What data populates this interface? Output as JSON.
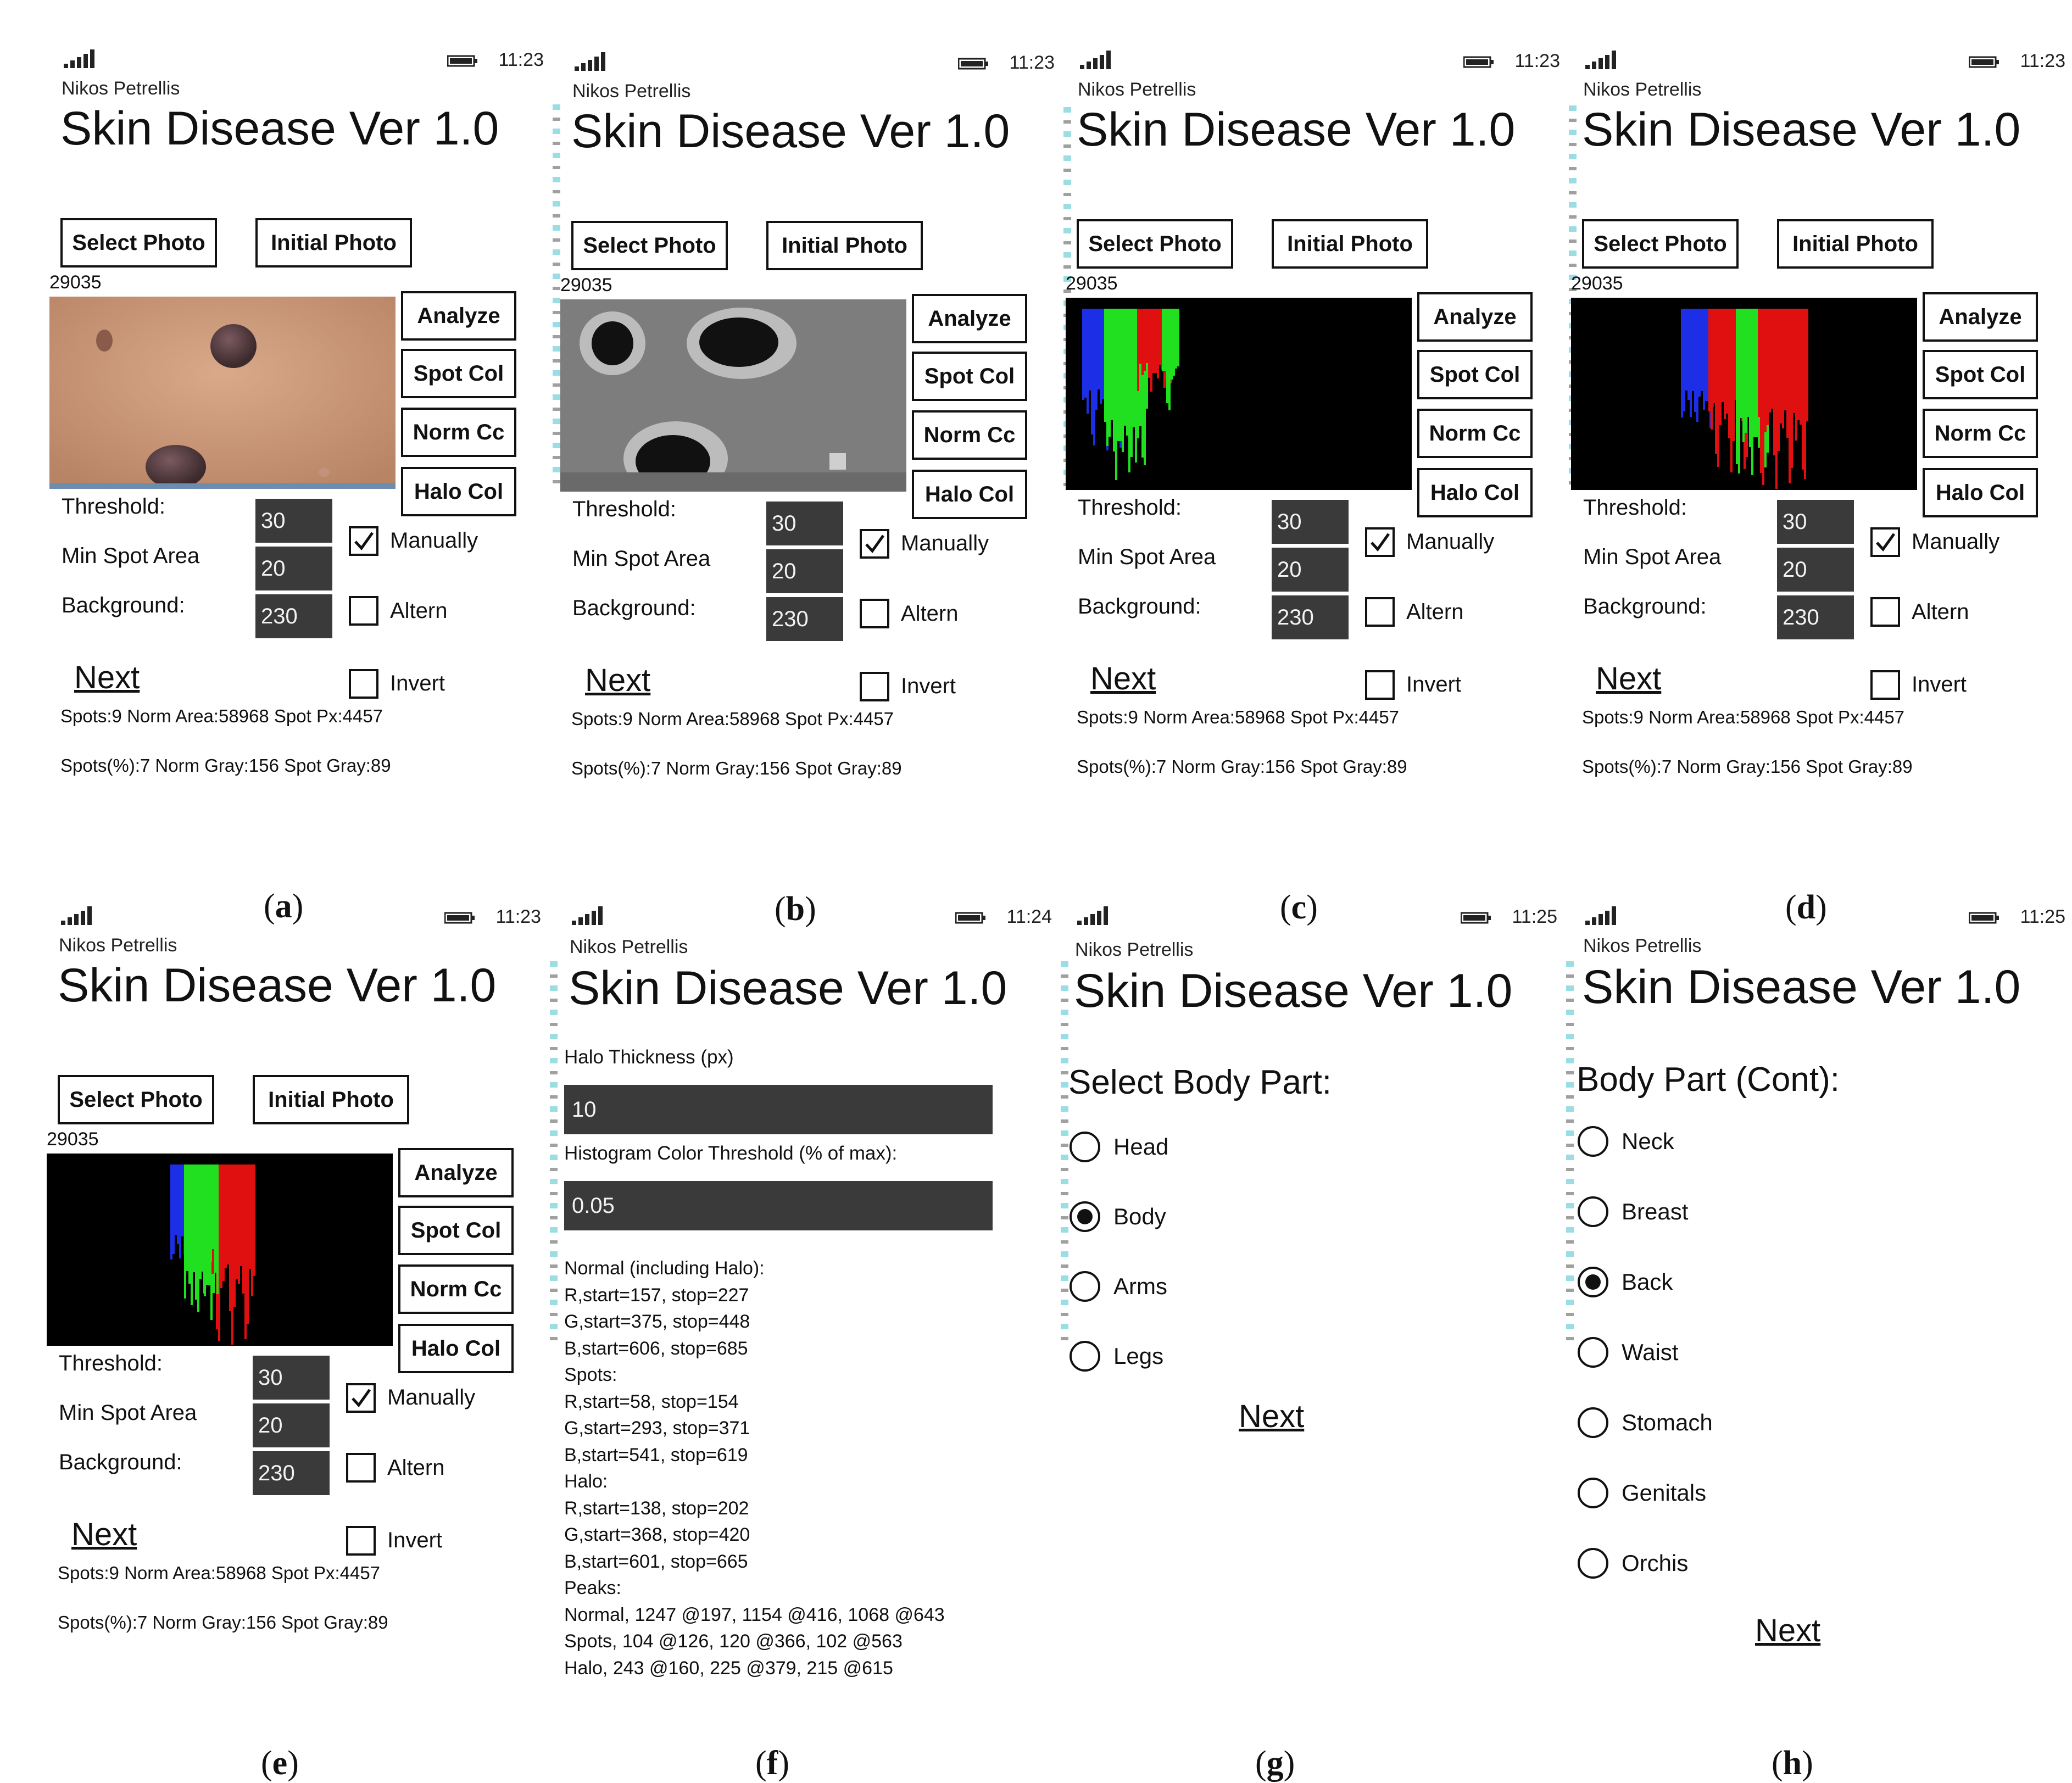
{
  "app": {
    "author": "Nikos Petrellis",
    "title": "Skin Disease Ver 1.0"
  },
  "analysis_panels": [
    {
      "caption": "a",
      "time": "11:23",
      "view": "photo"
    },
    {
      "caption": "b",
      "time": "11:23",
      "view": "segmented"
    },
    {
      "caption": "c",
      "time": "11:23",
      "view": "histogram_c"
    },
    {
      "caption": "d",
      "time": "11:23",
      "view": "histogram_d"
    },
    {
      "caption": "e",
      "time": "11:23",
      "view": "histogram_e"
    }
  ],
  "analysis": {
    "select_photo": "Select Photo",
    "initial_photo": "Initial Photo",
    "count": "29035",
    "analyze": "Analyze",
    "spot_col": "Spot Col",
    "norm_cc": "Norm Cc",
    "halo_col": "Halo Col",
    "threshold_label": "Threshold:",
    "threshold_value": "30",
    "min_spot_area_label": "Min Spot Area",
    "min_spot_area_value": "20",
    "background_label": "Background:",
    "background_value": "230",
    "manually_label": "Manually",
    "manually_checked": true,
    "altern_label": "Altern",
    "altern_checked": false,
    "invert_label": "Invert",
    "invert_checked": false,
    "next": "Next",
    "stats_line_1": "Spots:9 Norm Area:58968 Spot Px:4457",
    "stats_line_2": "Spots(%):7 Norm Gray:156 Spot Gray:89"
  },
  "panel_f": {
    "caption": "f",
    "time": "11:24",
    "halo_thickness_label": "Halo Thickness (px)",
    "halo_thickness_value": "10",
    "hist_threshold_label": "Histogram Color Threshold (% of max):",
    "hist_threshold_value": "0.05",
    "lines": [
      "Normal (including Halo):",
      "R,start=157, stop=227",
      "G,start=375, stop=448",
      "B,start=606, stop=685",
      "Spots:",
      "R,start=58, stop=154",
      "G,start=293, stop=371",
      "B,start=541, stop=619",
      "Halo:",
      "R,start=138, stop=202",
      "G,start=368, stop=420",
      "B,start=601, stop=665",
      "Peaks:",
      "Normal, 1247 @197, 1154 @416, 1068 @643",
      "Spots, 104 @126, 120 @366, 102 @563",
      "Halo, 243 @160, 225 @379, 215 @615"
    ]
  },
  "panel_g": {
    "caption": "g",
    "time": "11:25",
    "heading": "Select Body Part:",
    "options": [
      "Head",
      "Body",
      "Arms",
      "Legs"
    ],
    "selected": "Body",
    "next": "Next"
  },
  "panel_h": {
    "caption": "h",
    "time": "11:25",
    "heading": "Body Part (Cont):",
    "options": [
      "Neck",
      "Breast",
      "Back",
      "Waist",
      "Stomach",
      "Genitals",
      "Orchis"
    ],
    "selected": "Back",
    "next": "Next"
  }
}
